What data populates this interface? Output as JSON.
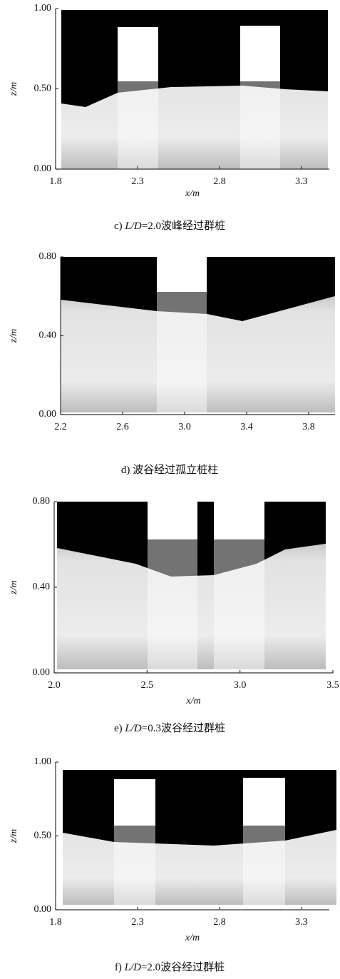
{
  "panels": [
    {
      "xlabel": "x/m",
      "ylabel": "z/m",
      "xlim": [
        1.8,
        3.47
      ],
      "ylim": [
        0,
        1
      ],
      "xticks": [
        1.8,
        2.3,
        2.8,
        3.3
      ],
      "yticks": [
        {
          "value": 0,
          "label": "0.00"
        },
        {
          "value": 0.5,
          "label": "0.50"
        },
        {
          "value": 1,
          "label": "1.00"
        }
      ],
      "caption": {
        "prefix": "c)",
        "italic": "L/D",
        "rest": "=2.0波峰经过群桩"
      }
    },
    {
      "ylabel": "z/m",
      "xlim": [
        2.2,
        3.97
      ],
      "ylim": [
        0,
        0.8
      ],
      "xticks": [
        2.2,
        2.6,
        {
          "value": 3,
          "label": "3.0"
        },
        3.4,
        3.8
      ],
      "yticks": [
        {
          "value": 0,
          "label": "0.00"
        },
        {
          "value": 0.4,
          "label": "0.40"
        },
        {
          "value": 0.8,
          "label": "0.80"
        }
      ],
      "caption": {
        "prefix": "d)",
        "rest": "波谷经过孤立桩柱"
      }
    },
    {
      "xlabel": "x/m",
      "ylabel": "z/m",
      "xlim": [
        2,
        3.5
      ],
      "ylim": [
        0,
        0.8
      ],
      "xticks": [
        {
          "value": 2,
          "label": "2.0"
        },
        2.5,
        {
          "value": 3,
          "label": "3.0"
        },
        3.5
      ],
      "yticks": [
        {
          "value": 0,
          "label": "0.00"
        },
        {
          "value": 0.4,
          "label": "0.40"
        },
        {
          "value": 0.8,
          "label": "0.80"
        }
      ],
      "caption": {
        "prefix": "e)",
        "italic": "L/D",
        "rest": "=0.3波谷经过群桩"
      }
    },
    {
      "xlabel": "x/m",
      "ylabel": "z/m",
      "xlim": [
        1.8,
        3.47
      ],
      "ylim": [
        0,
        1
      ],
      "xticks": [
        1.8,
        2.3,
        2.8,
        3.3
      ],
      "yticks": [
        {
          "value": 0,
          "label": "0.00"
        },
        {
          "value": 0.5,
          "label": "0.50"
        },
        {
          "value": 1,
          "label": "1.00"
        }
      ],
      "caption": {
        "prefix": "f)",
        "italic": "L/D",
        "rest": "=2.0波谷经过群桩"
      }
    }
  ]
}
